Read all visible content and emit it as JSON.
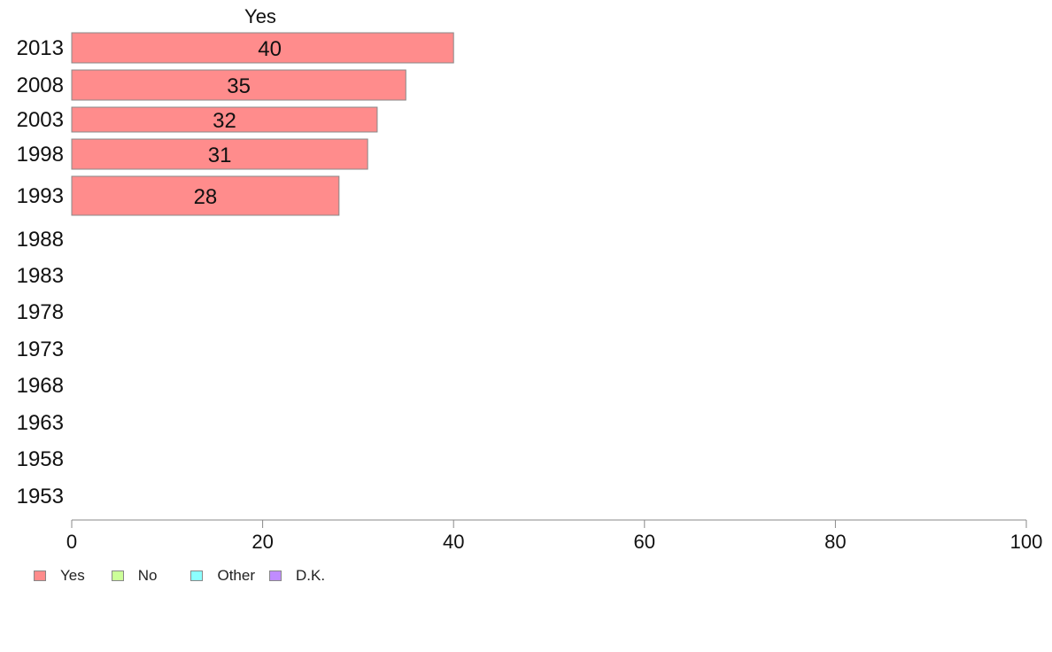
{
  "chart_data": {
    "type": "bar",
    "orientation": "horizontal",
    "title": "Yes",
    "categories": [
      "2013",
      "2008",
      "2003",
      "1998",
      "1993",
      "1988",
      "1983",
      "1978",
      "1973",
      "1968",
      "1963",
      "1958",
      "1953"
    ],
    "series": [
      {
        "name": "Yes",
        "color": "#ff8c8c",
        "values": [
          40,
          35,
          32,
          31,
          28,
          null,
          null,
          null,
          null,
          null,
          null,
          null,
          null
        ]
      },
      {
        "name": "No",
        "color": "#ccff99",
        "values": [
          null,
          null,
          null,
          null,
          null,
          null,
          null,
          null,
          null,
          null,
          null,
          null,
          null
        ]
      },
      {
        "name": "Other",
        "color": "#8cffff",
        "values": [
          null,
          null,
          null,
          null,
          null,
          null,
          null,
          null,
          null,
          null,
          null,
          null,
          null
        ]
      },
      {
        "name": "D.K.",
        "color": "#c08cff",
        "values": [
          null,
          null,
          null,
          null,
          null,
          null,
          null,
          null,
          null,
          null,
          null,
          null,
          null
        ]
      }
    ],
    "xlim": [
      0,
      100
    ],
    "xticks": [
      "0",
      "20",
      "40",
      "60",
      "80",
      "100"
    ],
    "grid": false,
    "legend_position": "bottom-left"
  },
  "legend": [
    {
      "label": "Yes",
      "color": "#ff8c8c"
    },
    {
      "label": "No",
      "color": "#ccff99"
    },
    {
      "label": "Other",
      "color": "#8cffff"
    },
    {
      "label": "D.K.",
      "color": "#c08cff"
    }
  ]
}
